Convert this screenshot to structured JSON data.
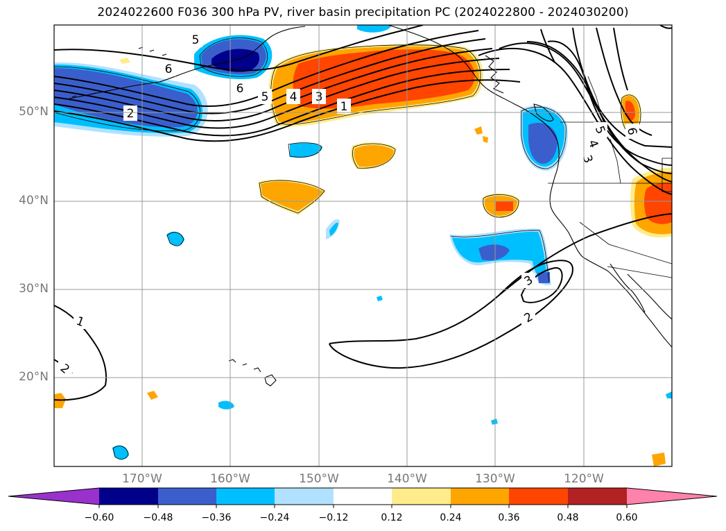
{
  "title": "2024022600 F036 300 hPa PV, river basin precipitation PC (2024022800 - 2024030200)",
  "axes": {
    "lat_labels": [
      "50°N",
      "40°N",
      "30°N",
      "20°N"
    ],
    "lon_labels": [
      "170°W",
      "160°W",
      "150°W",
      "140°W",
      "130°W",
      "120°W"
    ]
  },
  "contour_labels": [
    "5",
    "6",
    "6",
    "2",
    "5",
    "4",
    "3",
    "1",
    "5",
    "4",
    "3",
    "6",
    "1",
    "3",
    "2",
    "2"
  ],
  "colorbar": {
    "ticks": [
      "−0.60",
      "−0.48",
      "−0.36",
      "−0.24",
      "−0.12",
      "0.12",
      "0.24",
      "0.36",
      "0.48",
      "0.60"
    ],
    "colors": [
      "#9932CC",
      "#00008B",
      "#3A5FCD",
      "#00BFFF",
      "#B0E2FF",
      "#FFFFFF",
      "#FFEC8B",
      "#FFA500",
      "#FF4500",
      "#B22222",
      "#FF82AB"
    ]
  }
}
